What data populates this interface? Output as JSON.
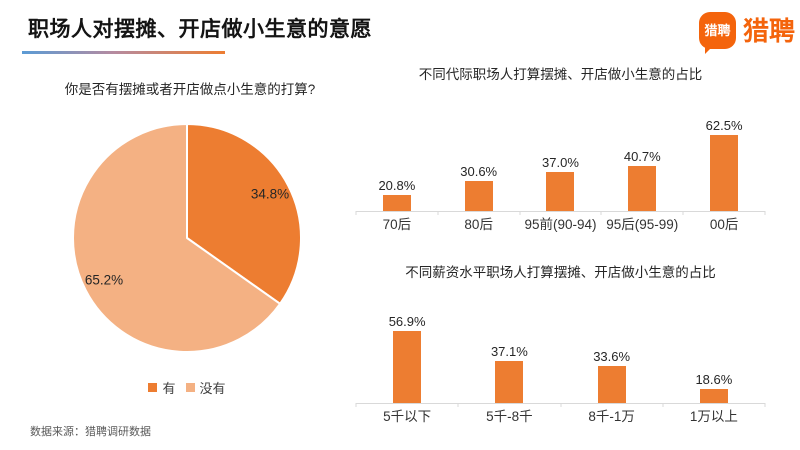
{
  "header": {
    "title": "职场人对摆摊、开店做小生意的意愿"
  },
  "logo": {
    "badge_text": "猎聘",
    "wordmark": "猎聘"
  },
  "footer": {
    "source": "数据来源：猎聘调研数据"
  },
  "colors": {
    "primary": "#ED7D31",
    "secondary": "#F4B183",
    "brand": "#F4640C",
    "axis": "#D9D9D9",
    "underline_start": "#5B9BD5",
    "underline_end": "#ED7D31"
  },
  "chart_data": [
    {
      "type": "pie",
      "title": "你是否有摆摊或者开店做点小生意的打算?",
      "slices": [
        {
          "label": "有",
          "value": 34.8,
          "display": "34.8%",
          "color": "#ED7D31"
        },
        {
          "label": "没有",
          "value": 65.2,
          "display": "65.2%",
          "color": "#F4B183"
        }
      ],
      "start_angle_deg": 0,
      "direction": "clockwise",
      "legend_position": "bottom"
    },
    {
      "type": "bar",
      "title": "不同代际职场人打算摆摊、开店做小生意的占比",
      "categories": [
        "70后",
        "80后",
        "95前(90-94)",
        "95后(95-99)",
        "00后"
      ],
      "values": [
        20.8,
        30.6,
        37.0,
        40.7,
        62.5
      ],
      "labels": [
        "20.8%",
        "30.6%",
        "37.0%",
        "40.7%",
        "62.5%"
      ],
      "xlabel": "",
      "ylabel": "",
      "ylim": [
        10,
        65
      ],
      "grid": false,
      "bar_color": "#ED7D31"
    },
    {
      "type": "bar",
      "title": "不同薪资水平职场人打算摆摊、开店做小生意的占比",
      "categories": [
        "5千以下",
        "5千-8千",
        "8千-1万",
        "1万以上"
      ],
      "values": [
        56.9,
        37.1,
        33.6,
        18.6
      ],
      "labels": [
        "56.9%",
        "37.1%",
        "33.6%",
        "18.6%"
      ],
      "xlabel": "",
      "ylabel": "",
      "ylim": [
        9,
        63
      ],
      "grid": false,
      "bar_color": "#ED7D31"
    }
  ]
}
